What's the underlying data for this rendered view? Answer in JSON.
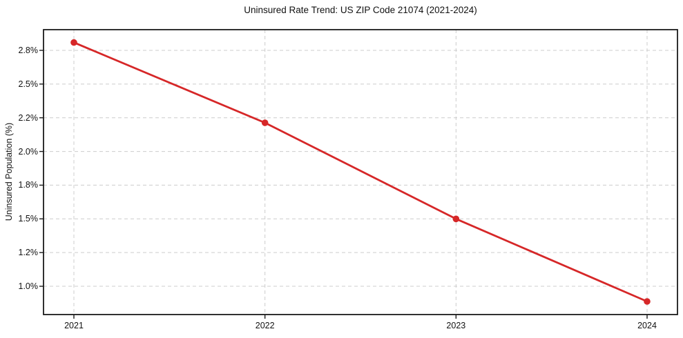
{
  "chart_data": {
    "type": "line",
    "title": "Uninsured Rate Trend: US ZIP Code 21074 (2021-2024)",
    "xlabel": "",
    "ylabel": "Uninsured Population (%)",
    "x": [
      "2021",
      "2022",
      "2023",
      "2024"
    ],
    "series": [
      {
        "name": "Uninsured rate",
        "values": [
          2.87,
          2.17,
          1.5,
          0.91
        ]
      }
    ],
    "unit": "%",
    "xtick_labels": [
      "2021",
      "2022",
      "2023",
      "2024"
    ],
    "ytick_labels_top_to_bottom": [
      "2.8%",
      "2.5%",
      "2.2%",
      "2.0%",
      "1.8%",
      "1.5%",
      "1.2%",
      "1.0%"
    ],
    "ytick_values_top_to_bottom": [
      2.8,
      2.5,
      2.2,
      2.0,
      1.8,
      1.5,
      1.2,
      1.0
    ],
    "grid": true,
    "grid_style": "dashed",
    "legend": false,
    "marker": "circle",
    "colors": {
      "line": "#d62728",
      "marker": "#d62728",
      "gridline": "#cccccc",
      "spine": "#1a1a1a",
      "text": "#111111",
      "background": "#ffffff"
    }
  }
}
